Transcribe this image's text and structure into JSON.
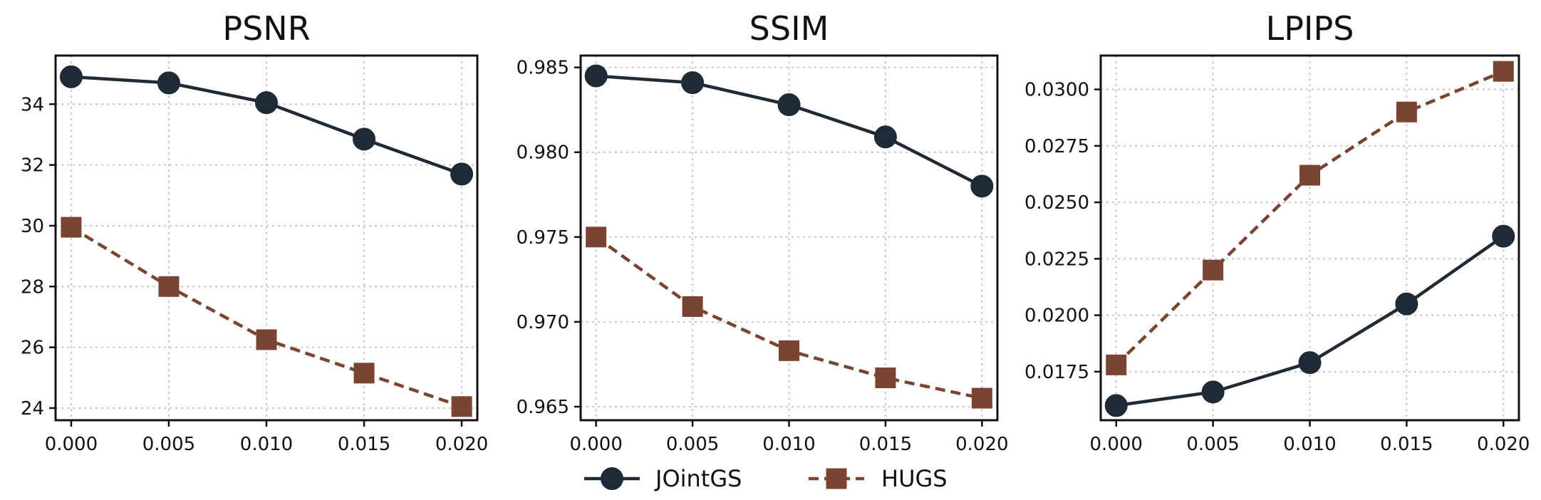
{
  "colors": {
    "joint": "#1f2a36",
    "hugs": "#7a4432",
    "grid": "#c8c8c8",
    "axis": "#111111"
  },
  "legend": [
    {
      "name": "JOintGS",
      "marker": "circle",
      "style": "solid",
      "color": "#1f2a36"
    },
    {
      "name": "HUGS",
      "marker": "square",
      "style": "dashed",
      "color": "#7a4432"
    }
  ],
  "chart_data": [
    {
      "type": "line",
      "title": "PSNR",
      "x": [
        0.0,
        0.005,
        0.01,
        0.015,
        0.02
      ],
      "x_tick_labels": [
        "0.000",
        "0.005",
        "0.010",
        "0.015",
        "0.020"
      ],
      "xlim": [
        -0.0008,
        0.0208
      ],
      "y_ticks": [
        24,
        26,
        28,
        30,
        32,
        34
      ],
      "y_tick_labels": [
        "24",
        "26",
        "28",
        "30",
        "32",
        "34"
      ],
      "ylim": [
        23.6,
        35.6
      ],
      "series": [
        {
          "name": "JOintGS",
          "values": [
            34.9,
            34.7,
            34.05,
            32.85,
            31.7
          ]
        },
        {
          "name": "HUGS",
          "values": [
            29.95,
            28.0,
            26.25,
            25.15,
            24.05
          ]
        }
      ]
    },
    {
      "type": "line",
      "title": "SSIM",
      "x": [
        0.0,
        0.005,
        0.01,
        0.015,
        0.02
      ],
      "x_tick_labels": [
        "0.000",
        "0.005",
        "0.010",
        "0.015",
        "0.020"
      ],
      "xlim": [
        -0.0008,
        0.0208
      ],
      "y_ticks": [
        0.965,
        0.97,
        0.975,
        0.98,
        0.985
      ],
      "y_tick_labels": [
        "0.965",
        "0.970",
        "0.975",
        "0.980",
        "0.985"
      ],
      "ylim": [
        0.9642,
        0.9857
      ],
      "series": [
        {
          "name": "JOintGS",
          "values": [
            0.9845,
            0.9841,
            0.9828,
            0.9809,
            0.978
          ]
        },
        {
          "name": "HUGS",
          "values": [
            0.975,
            0.9709,
            0.9683,
            0.9667,
            0.9655
          ]
        }
      ]
    },
    {
      "type": "line",
      "title": "LPIPS",
      "x": [
        0.0,
        0.005,
        0.01,
        0.015,
        0.02
      ],
      "x_tick_labels": [
        "0.000",
        "0.005",
        "0.010",
        "0.015",
        "0.020"
      ],
      "xlim": [
        -0.0008,
        0.0208
      ],
      "y_ticks": [
        0.0175,
        0.02,
        0.0225,
        0.025,
        0.0275,
        0.03
      ],
      "y_tick_labels": [
        "0.0175",
        "0.0200",
        "0.0225",
        "0.0250",
        "0.0275",
        "0.0300"
      ],
      "ylim": [
        0.01535,
        0.0315
      ],
      "series": [
        {
          "name": "JOintGS",
          "values": [
            0.016,
            0.0166,
            0.0179,
            0.0205,
            0.0235
          ]
        },
        {
          "name": "HUGS",
          "values": [
            0.0178,
            0.022,
            0.0262,
            0.029,
            0.0308
          ]
        }
      ]
    }
  ]
}
